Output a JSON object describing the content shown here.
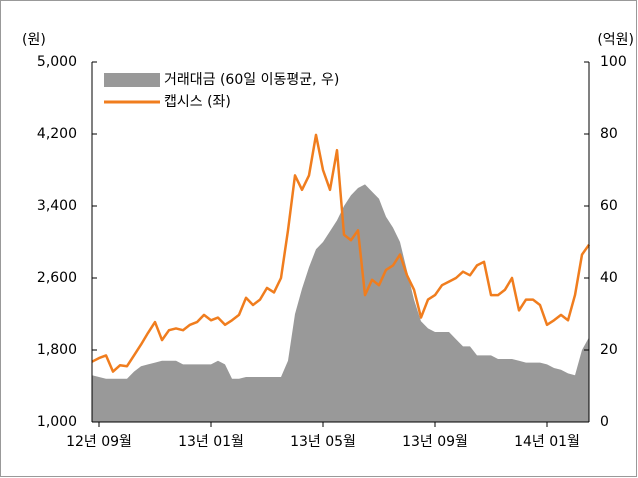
{
  "chart_data": {
    "type": "line_area",
    "y_label": "(원)",
    "y2_label": "(억원)",
    "categories": [
      null,
      "12년 09월",
      null,
      null,
      null,
      null,
      null,
      null,
      null,
      null,
      null,
      null,
      null,
      null,
      null,
      null,
      null,
      "13년 01월",
      null,
      null,
      null,
      null,
      null,
      null,
      null,
      null,
      null,
      null,
      null,
      null,
      null,
      null,
      null,
      "13년 05월",
      null,
      null,
      null,
      null,
      null,
      null,
      null,
      null,
      null,
      null,
      null,
      null,
      null,
      null,
      null,
      "13년 09월",
      null,
      null,
      null,
      null,
      null,
      null,
      null,
      null,
      null,
      null,
      null,
      null,
      null,
      null,
      null,
      "14년 01월",
      null,
      null,
      null,
      null,
      null,
      null
    ],
    "series": [
      {
        "name": "거래대금 (60일 이동평균, 우)",
        "type": "area",
        "axis": "y2",
        "color": "#999999",
        "values": [
          13,
          12.5,
          12,
          12,
          12,
          12,
          14,
          15.5,
          16,
          16.5,
          17,
          17,
          17,
          16,
          16,
          16,
          16,
          16,
          17,
          16,
          12,
          12,
          12.5,
          12.5,
          12.5,
          12.5,
          12.5,
          12.5,
          17,
          30,
          37,
          43,
          48,
          50,
          53,
          56,
          60,
          63,
          65,
          66,
          64,
          62,
          57,
          54,
          50,
          42,
          34,
          28,
          26,
          25,
          25,
          25,
          23,
          21,
          21,
          18.5,
          18.5,
          18.5,
          17.5,
          17.5,
          17.5,
          17,
          16.5,
          16.5,
          16.5,
          16,
          15,
          14.5,
          13.5,
          13,
          20,
          23.5
        ]
      },
      {
        "name": "캡시스 (좌)",
        "type": "line",
        "axis": "y",
        "color": "#f07d1e",
        "values": [
          1670,
          1710,
          1740,
          1560,
          1630,
          1620,
          1740,
          1860,
          1990,
          2110,
          1910,
          2020,
          2040,
          2020,
          2080,
          2110,
          2190,
          2130,
          2160,
          2080,
          2130,
          2190,
          2380,
          2300,
          2360,
          2490,
          2440,
          2600,
          3130,
          3740,
          3580,
          3740,
          4190,
          3800,
          3580,
          4020,
          3080,
          3020,
          3130,
          2410,
          2580,
          2520,
          2690,
          2740,
          2860,
          2630,
          2470,
          2160,
          2360,
          2410,
          2520,
          2560,
          2600,
          2670,
          2630,
          2740,
          2780,
          2410,
          2410,
          2470,
          2600,
          2240,
          2360,
          2360,
          2300,
          2080,
          2130,
          2190,
          2130,
          2410,
          2860,
          2970
        ]
      }
    ],
    "ylim": [
      1000,
      5000
    ],
    "yticks": [
      {
        "value": 1000,
        "label": "1,000"
      },
      {
        "value": 1800,
        "label": "1,800"
      },
      {
        "value": 2600,
        "label": "2,600"
      },
      {
        "value": 3400,
        "label": "3,400"
      },
      {
        "value": 4200,
        "label": "4,200"
      },
      {
        "value": 5000,
        "label": "5,000"
      }
    ],
    "y2lim": [
      0,
      100
    ],
    "y2ticks": [
      0,
      20,
      40,
      60,
      80,
      100
    ],
    "legend": "top-left"
  }
}
